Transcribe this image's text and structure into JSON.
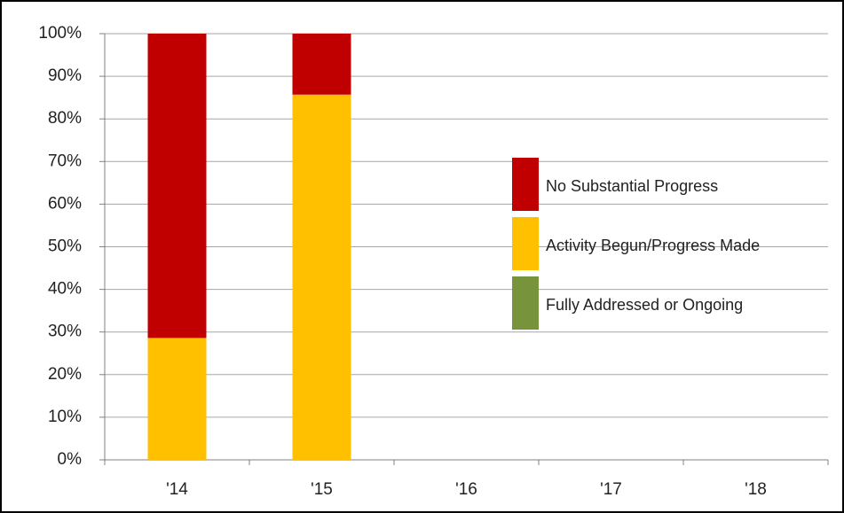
{
  "chart_data": {
    "type": "stacked-bar",
    "categories": [
      "'14",
      "'15",
      "'16",
      "'17",
      "'18"
    ],
    "series": [
      {
        "name": "Fully Addressed or Ongoing",
        "color": "#77933c",
        "values": [
          0,
          0,
          null,
          null,
          null
        ]
      },
      {
        "name": "Activity Begun/Progress Made",
        "color": "#ffc000",
        "values": [
          28.6,
          85.7,
          null,
          null,
          null
        ]
      },
      {
        "name": "No Substantial Progress",
        "color": "#c00000",
        "values": [
          71.4,
          14.3,
          null,
          null,
          null
        ]
      }
    ],
    "ylim": [
      0,
      100
    ],
    "yticks": [
      {
        "value": 0,
        "label": "0%"
      },
      {
        "value": 10,
        "label": "10%"
      },
      {
        "value": 20,
        "label": "20%"
      },
      {
        "value": 30,
        "label": "30%"
      },
      {
        "value": 40,
        "label": "40%"
      },
      {
        "value": 50,
        "label": "50%"
      },
      {
        "value": 60,
        "label": "60%"
      },
      {
        "value": 70,
        "label": "70%"
      },
      {
        "value": 80,
        "label": "80%"
      },
      {
        "value": 90,
        "label": "90%"
      },
      {
        "value": 100,
        "label": "100%"
      }
    ],
    "grid": true,
    "legend": "right"
  }
}
